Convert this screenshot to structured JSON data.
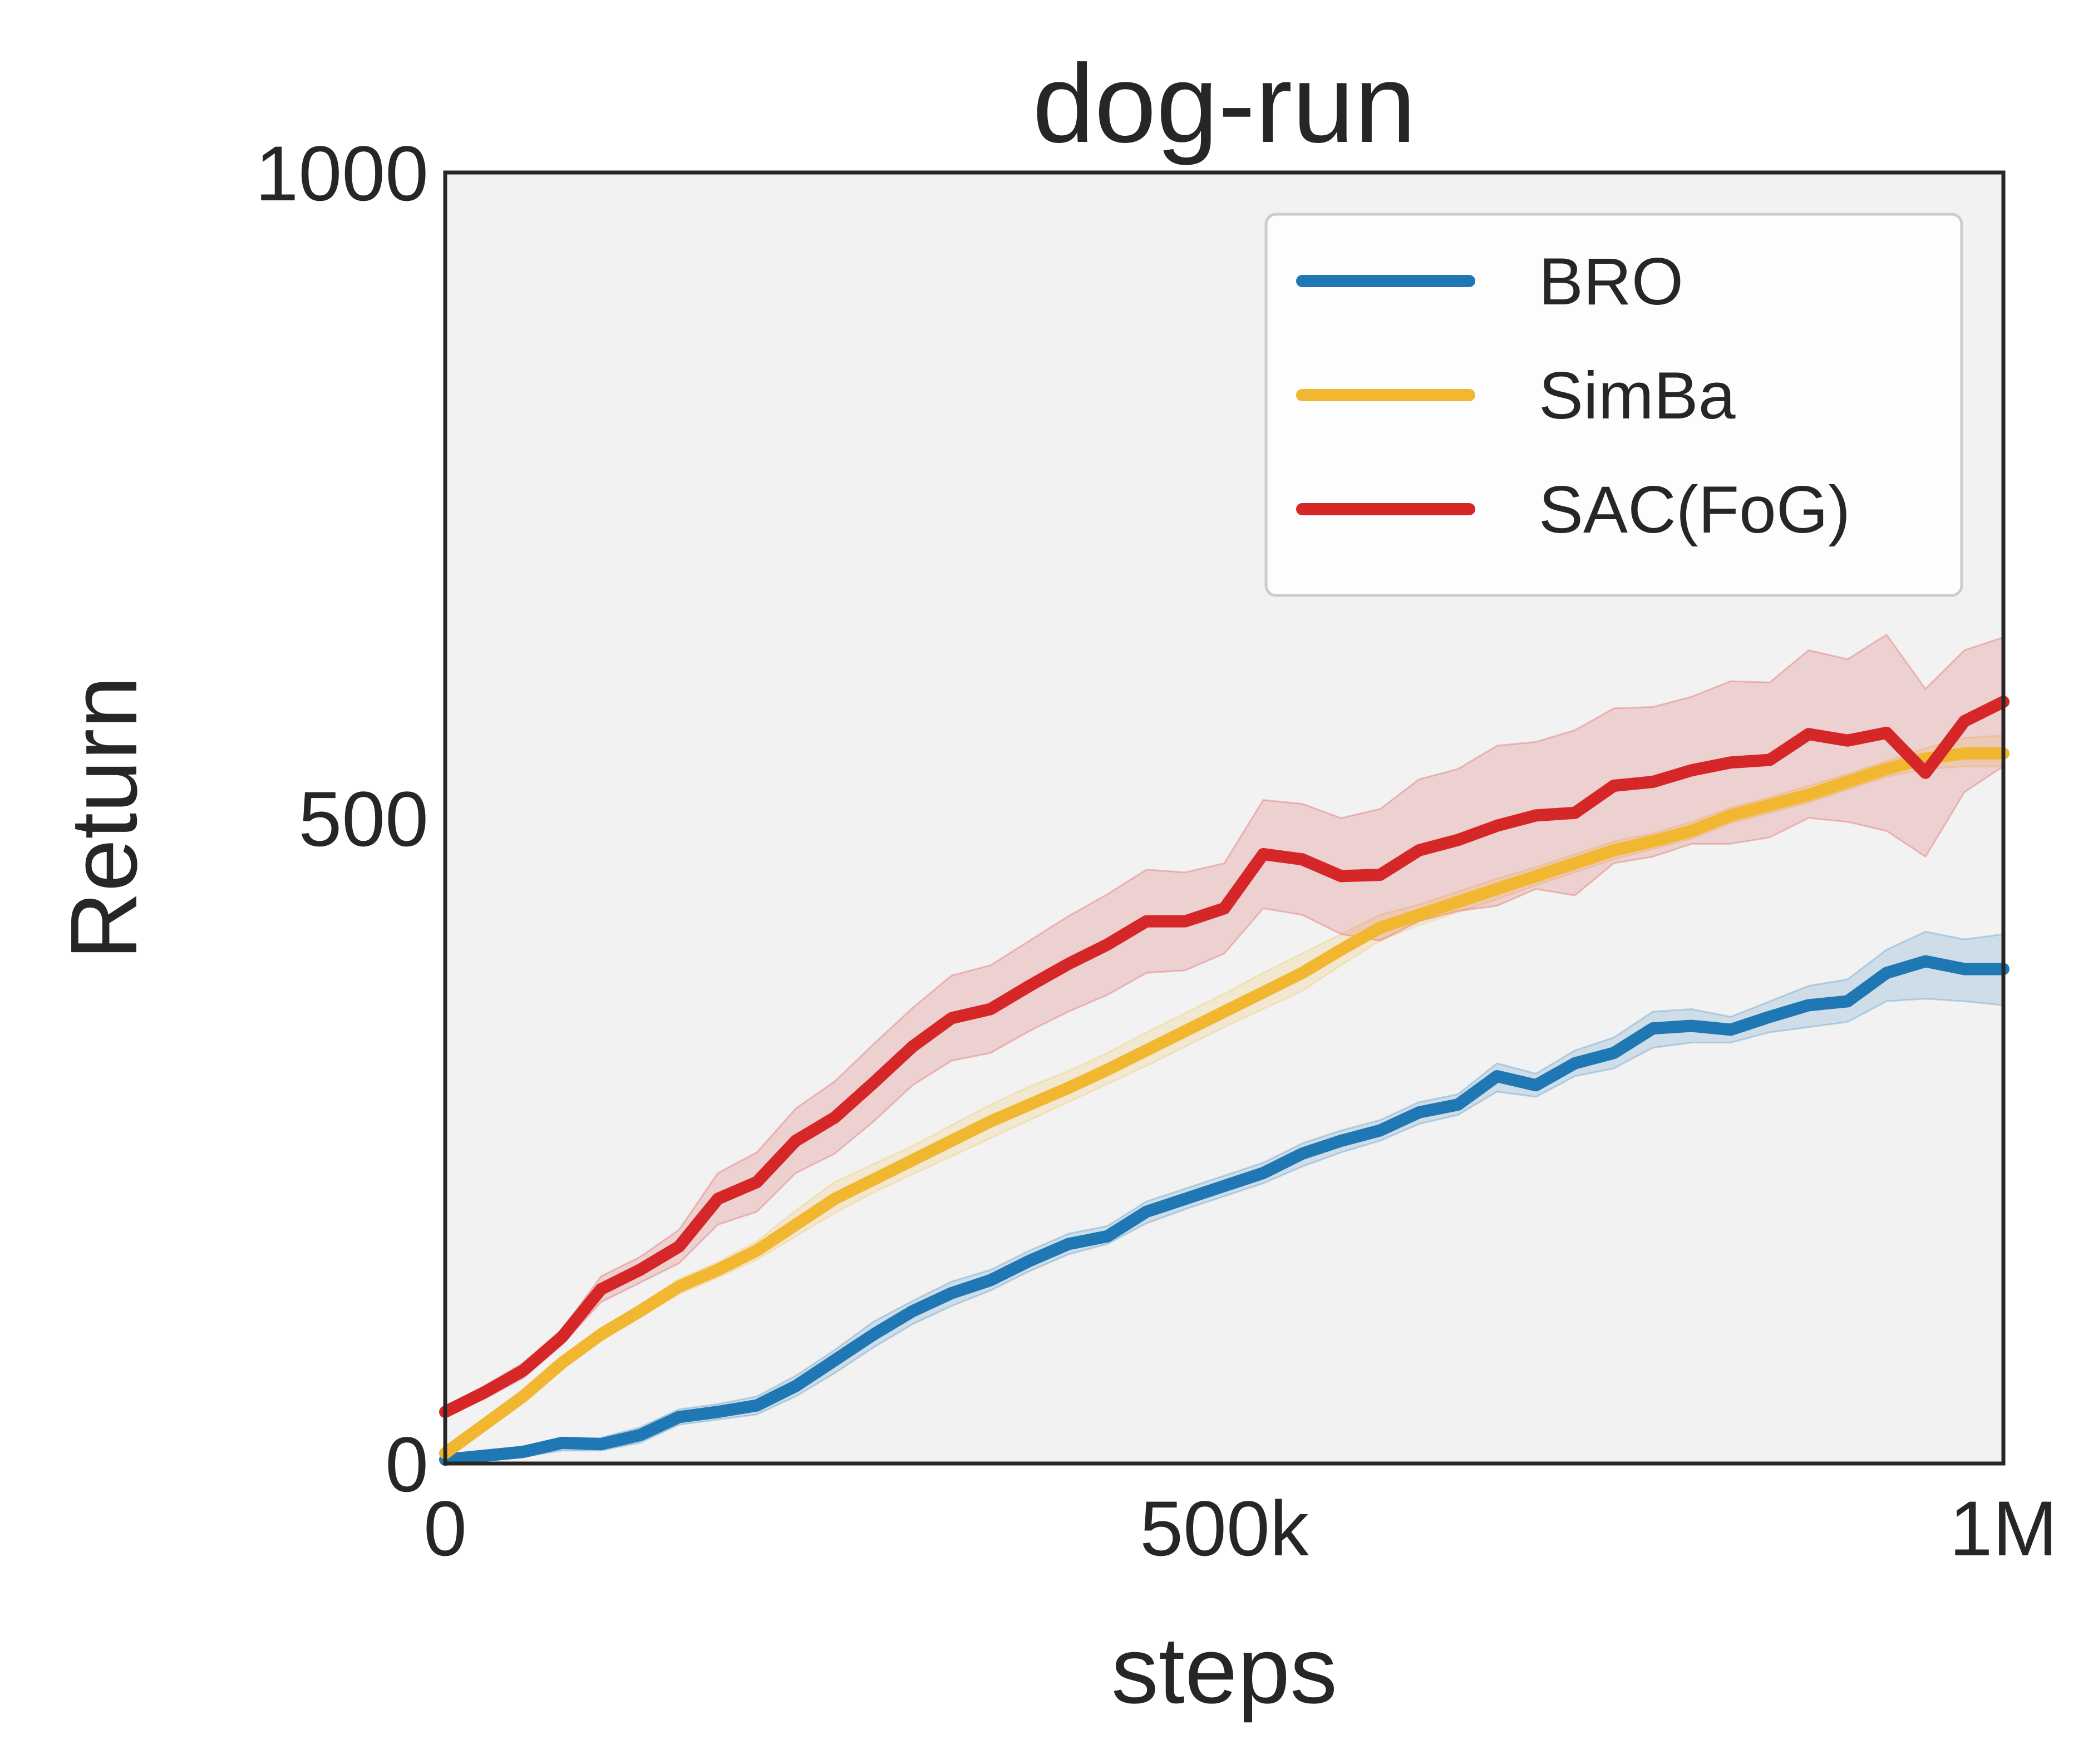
{
  "chart_data": {
    "type": "line",
    "title": "dog-run",
    "xlabel": "steps",
    "ylabel": "Return",
    "xlim": [
      0,
      1000000
    ],
    "ylim": [
      0,
      1000
    ],
    "x_ticks": [
      0,
      500000,
      1000000
    ],
    "x_tick_labels": [
      "0",
      "500k",
      "1M"
    ],
    "y_ticks": [
      0,
      500,
      1000
    ],
    "y_tick_labels": [
      "0",
      "500",
      "1000"
    ],
    "grid": false,
    "background": "#f2f2f2",
    "legend": "top-right",
    "x": [
      0,
      25000,
      50000,
      75000,
      100000,
      125000,
      150000,
      175000,
      200000,
      225000,
      250000,
      275000,
      300000,
      325000,
      350000,
      375000,
      400000,
      425000,
      450000,
      475000,
      500000,
      525000,
      550000,
      575000,
      600000,
      625000,
      650000,
      675000,
      700000,
      725000,
      750000,
      775000,
      800000,
      825000,
      850000,
      875000,
      900000,
      925000,
      950000,
      975000,
      1000000
    ],
    "series": [
      {
        "name": "BRO",
        "color": "#1f77b4",
        "values": [
          3,
          6,
          9,
          16,
          15,
          22,
          36,
          40,
          45,
          60,
          80,
          100,
          118,
          132,
          142,
          157,
          170,
          176,
          195,
          205,
          215,
          225,
          240,
          250,
          258,
          272,
          278,
          300,
          293,
          310,
          318,
          337,
          339,
          336,
          346,
          355,
          358,
          380,
          389,
          383,
          383
        ],
        "lower": [
          1,
          3,
          5,
          10,
          10,
          16,
          30,
          34,
          38,
          52,
          70,
          90,
          108,
          122,
          134,
          149,
          162,
          170,
          186,
          197,
          207,
          217,
          230,
          241,
          250,
          263,
          270,
          288,
          284,
          300,
          306,
          322,
          326,
          326,
          334,
          338,
          342,
          358,
          360,
          358,
          355
        ],
        "upper": [
          5,
          9,
          13,
          20,
          20,
          28,
          42,
          46,
          52,
          68,
          88,
          110,
          126,
          141,
          150,
          165,
          178,
          184,
          203,
          213,
          223,
          233,
          248,
          258,
          266,
          280,
          286,
          310,
          302,
          320,
          330,
          350,
          352,
          346,
          358,
          370,
          375,
          398,
          412,
          406,
          410
        ]
      },
      {
        "name": "SimBa",
        "color": "#f2b731",
        "values": [
          8,
          30,
          52,
          78,
          100,
          118,
          137,
          150,
          165,
          185,
          205,
          220,
          235,
          250,
          265,
          278,
          291,
          305,
          320,
          335,
          350,
          365,
          380,
          398,
          415,
          425,
          435,
          445,
          455,
          465,
          475,
          482,
          490,
          502,
          510,
          518,
          528,
          538,
          546,
          550,
          550
        ],
        "lower": [
          6,
          26,
          47,
          73,
          95,
          113,
          131,
          144,
          158,
          176,
          194,
          210,
          224,
          238,
          252,
          266,
          280,
          294,
          308,
          323,
          338,
          352,
          366,
          386,
          405,
          417,
          427,
          437,
          448,
          458,
          468,
          476,
          484,
          496,
          504,
          512,
          522,
          532,
          538,
          540,
          540
        ],
        "upper": [
          10,
          34,
          57,
          83,
          105,
          123,
          143,
          156,
          172,
          196,
          218,
          232,
          246,
          262,
          278,
          292,
          304,
          318,
          334,
          349,
          364,
          380,
          395,
          410,
          425,
          433,
          443,
          453,
          462,
          472,
          482,
          488,
          497,
          508,
          516,
          525,
          534,
          544,
          554,
          562,
          564
        ]
      },
      {
        "name": "SAC(FoG)",
        "color": "#d62728",
        "values": [
          40,
          55,
          72,
          98,
          135,
          150,
          168,
          205,
          218,
          250,
          268,
          295,
          323,
          345,
          352,
          370,
          387,
          402,
          420,
          420,
          430,
          472,
          468,
          455,
          456,
          475,
          483,
          494,
          502,
          504,
          525,
          528,
          537,
          543,
          545,
          565,
          560,
          566,
          535,
          575,
          590
        ],
        "lower": [
          36,
          50,
          66,
          92,
          125,
          140,
          155,
          185,
          195,
          225,
          240,
          265,
          293,
          312,
          318,
          335,
          350,
          363,
          380,
          382,
          395,
          430,
          425,
          410,
          405,
          420,
          428,
          432,
          445,
          440,
          465,
          470,
          480,
          480,
          485,
          500,
          497,
          490,
          470,
          520,
          540
        ],
        "upper": [
          44,
          60,
          78,
          104,
          145,
          160,
          181,
          225,
          241,
          275,
          296,
          325,
          353,
          378,
          386,
          405,
          424,
          441,
          460,
          458,
          465,
          514,
          511,
          500,
          507,
          530,
          538,
          556,
          559,
          568,
          585,
          586,
          594,
          606,
          605,
          630,
          623,
          642,
          600,
          630,
          640
        ]
      }
    ]
  }
}
